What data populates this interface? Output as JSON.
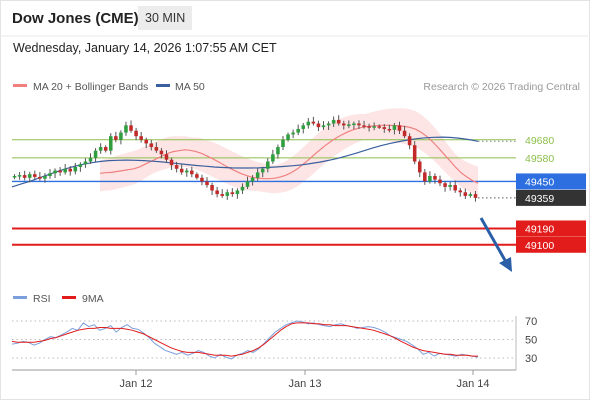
{
  "header": {
    "title": "Dow Jones (CME)",
    "timeframe": "30 MIN",
    "datetime": "Wednesday, January 14, 2026 1:07:55 AM CET"
  },
  "legend": {
    "ma20": "MA 20 + Bollinger Bands",
    "ma50": "MA 50",
    "copyright": "Research © 2026 Trading Central",
    "rsi": "RSI",
    "rsi_ma": "9MA"
  },
  "colors": {
    "up_candle": "#2e9e3f",
    "down_candle": "#c22a2a",
    "ma20": "#f08080",
    "ma50": "#3a5f9e",
    "bollinger_fill": "#fde0e0",
    "support": "#e21b1b",
    "resistance": "#8cbf4a",
    "pivot": "#2d6fe0",
    "last_price": "#333333",
    "arrow": "#2a5fa8",
    "rsi_line": "#7a9fdc",
    "rsi_ma_line": "#e21b1b"
  },
  "chart_data": [
    {
      "type": "candlestick",
      "x_labels": [
        "Jan 12",
        "Jan 13",
        "Jan 14"
      ],
      "y_range": [
        49060,
        49900
      ],
      "levels": [
        {
          "name": "resistance-2",
          "value": 49680,
          "label": "49680",
          "kind": "resistance"
        },
        {
          "name": "resistance-1",
          "value": 49580,
          "label": "49580",
          "kind": "resistance"
        },
        {
          "name": "pivot",
          "value": 49450,
          "label": "49450",
          "kind": "pivot"
        },
        {
          "name": "last-price",
          "value": 49359,
          "label": "49359",
          "kind": "last"
        },
        {
          "name": "support-1",
          "value": 49190,
          "label": "49190",
          "kind": "support"
        },
        {
          "name": "support-2",
          "value": 49100,
          "label": "49100",
          "kind": "support"
        }
      ],
      "closes": [
        49480,
        49485,
        49470,
        49490,
        49475,
        49465,
        49480,
        49495,
        49510,
        49500,
        49520,
        49505,
        49530,
        49545,
        49560,
        49580,
        49620,
        49640,
        49620,
        49700,
        49680,
        49720,
        49760,
        49730,
        49700,
        49680,
        49660,
        49640,
        49620,
        49600,
        49570,
        49540,
        49520,
        49500,
        49510,
        49490,
        49470,
        49450,
        49430,
        49400,
        49380,
        49370,
        49390,
        49380,
        49400,
        49420,
        49450,
        49470,
        49500,
        49520,
        49560,
        49600,
        49640,
        49680,
        49710,
        49720,
        49740,
        49760,
        49780,
        49770,
        49750,
        49760,
        49770,
        49790,
        49770,
        49760,
        49765,
        49770,
        49760,
        49755,
        49750,
        49755,
        49750,
        49740,
        49735,
        49760,
        49730,
        49700,
        49650,
        49560,
        49500,
        49450,
        49480,
        49460,
        49440,
        49420,
        49430,
        49400,
        49390,
        49370,
        49380,
        49359
      ],
      "ma20": [
        49495,
        49498,
        49500,
        49505,
        49510,
        49515,
        49520,
        49530,
        49545,
        49560,
        49575,
        49590,
        49605,
        49615,
        49620,
        49625,
        49622,
        49615,
        49605,
        49590,
        49575,
        49558,
        49540,
        49523,
        49508,
        49493,
        49482,
        49473,
        49468,
        49465,
        49465,
        49468,
        49475,
        49485,
        49500,
        49520,
        49545,
        49570,
        49598,
        49625,
        49650,
        49673,
        49693,
        49710,
        49725,
        49737,
        49746,
        49752,
        49756,
        49758,
        49760,
        49760,
        49759,
        49757,
        49754,
        49748,
        49738,
        49720,
        49697,
        49668,
        49635,
        49600,
        49565,
        49530,
        49498,
        49475,
        49455,
        49440
      ],
      "ma50": [
        49420,
        49435,
        49450,
        49468,
        49485,
        49502,
        49518,
        49532,
        49544,
        49553,
        49560,
        49565,
        49567,
        49568,
        49567,
        49565,
        49562,
        49558,
        49553,
        49548,
        49543,
        49538,
        49534,
        49530,
        49527,
        49525,
        49524,
        49524,
        49525,
        49527,
        49530,
        49533,
        49537,
        49542,
        49549,
        49557,
        49566,
        49577,
        49590,
        49604,
        49619,
        49634,
        49648,
        49660,
        49670,
        49679,
        49686,
        49691,
        49694,
        49695,
        49693,
        49688,
        49681,
        49672
      ]
    },
    {
      "type": "line",
      "name": "RSI",
      "y_ticks": [
        70,
        50,
        30
      ],
      "y_range": [
        20,
        80
      ],
      "rsi": [
        45,
        46,
        48,
        47,
        44,
        46,
        50,
        53,
        52,
        55,
        58,
        62,
        60,
        68,
        64,
        66,
        60,
        62,
        65,
        58,
        63,
        66,
        62,
        61,
        57,
        52,
        46,
        42,
        38,
        36,
        34,
        36,
        33,
        35,
        38,
        36,
        32,
        30,
        34,
        31,
        29,
        33,
        35,
        38,
        36,
        40,
        46,
        52,
        58,
        62,
        66,
        68,
        70,
        69,
        67,
        68,
        66,
        65,
        64,
        66,
        67,
        65,
        64,
        62,
        63,
        64,
        63,
        61,
        58,
        54,
        52,
        50,
        48,
        44,
        40,
        34,
        36,
        32,
        35,
        34,
        33,
        32,
        34,
        33,
        32,
        31
      ],
      "rsi_ma": [
        48,
        47,
        47,
        47,
        47,
        48,
        49,
        51,
        52,
        54,
        56,
        58,
        60,
        61,
        62,
        62,
        63,
        63,
        62,
        62,
        62,
        61,
        60,
        58,
        56,
        53,
        50,
        47,
        44,
        41,
        39,
        37,
        36,
        36,
        36,
        35,
        34,
        33,
        33,
        33,
        32,
        33,
        34,
        36,
        38,
        41,
        45,
        50,
        55,
        60,
        64,
        67,
        68,
        68,
        68,
        67,
        67,
        66,
        66,
        65,
        65,
        65,
        64,
        63,
        62,
        61,
        60,
        58,
        56,
        54,
        51,
        48,
        45,
        42,
        40,
        38,
        37,
        36,
        35,
        34,
        34,
        33,
        33,
        33,
        32,
        32
      ]
    }
  ]
}
